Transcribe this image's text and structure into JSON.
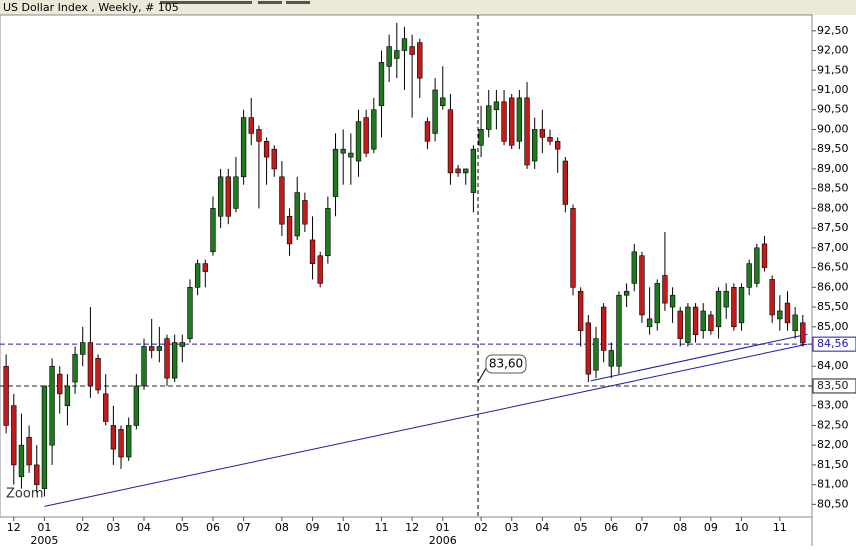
{
  "chart_data": {
    "type": "candlestick",
    "title": "US Dollar Index , Weekly, # 105",
    "zoom_label": "Zoom",
    "up_color": "#1f7a1f",
    "down_color": "#c41a1a",
    "xlim": [
      -0.8,
      105.2
    ],
    "xticks": [
      {
        "value": 1,
        "label": "12"
      },
      {
        "value": 5,
        "label": "01"
      },
      {
        "value": 10,
        "label": "02"
      },
      {
        "value": 14,
        "label": "03"
      },
      {
        "value": 18,
        "label": "04"
      },
      {
        "value": 23,
        "label": "05"
      },
      {
        "value": 27,
        "label": "06"
      },
      {
        "value": 31,
        "label": "07"
      },
      {
        "value": 36,
        "label": "08"
      },
      {
        "value": 40,
        "label": "09"
      },
      {
        "value": 44,
        "label": "10"
      },
      {
        "value": 49,
        "label": "11"
      },
      {
        "value": 53,
        "label": "12"
      },
      {
        "value": 57,
        "label": "01"
      },
      {
        "value": 62,
        "label": "02"
      },
      {
        "value": 66,
        "label": "03"
      },
      {
        "value": 70,
        "label": "04"
      },
      {
        "value": 75,
        "label": "05"
      },
      {
        "value": 79,
        "label": "06"
      },
      {
        "value": 83,
        "label": "07"
      },
      {
        "value": 88,
        "label": "08"
      },
      {
        "value": 92,
        "label": "09"
      },
      {
        "value": 96,
        "label": "10"
      },
      {
        "value": 101,
        "label": "11"
      }
    ],
    "year_labels": [
      {
        "value": 5,
        "label": "2005"
      },
      {
        "value": 57,
        "label": "2006"
      }
    ],
    "ylim": [
      80.18,
      92.9
    ],
    "yticks": [
      {
        "value": 80.5,
        "label": "80,50"
      },
      {
        "value": 81,
        "label": "81,00"
      },
      {
        "value": 81.5,
        "label": "81,50"
      },
      {
        "value": 82,
        "label": "82,00"
      },
      {
        "value": 82.5,
        "label": "82,50"
      },
      {
        "value": 83,
        "label": "83,00"
      },
      {
        "value": 84,
        "label": "84,00"
      },
      {
        "value": 85,
        "label": "85,00"
      },
      {
        "value": 85.5,
        "label": "85,50"
      },
      {
        "value": 86,
        "label": "86,00"
      },
      {
        "value": 86.5,
        "label": "86,50"
      },
      {
        "value": 87,
        "label": "87,00"
      },
      {
        "value": 87.5,
        "label": "87,50"
      },
      {
        "value": 88,
        "label": "88,00"
      },
      {
        "value": 88.5,
        "label": "88,50"
      },
      {
        "value": 89,
        "label": "89,00"
      },
      {
        "value": 89.5,
        "label": "89,50"
      },
      {
        "value": 90,
        "label": "90,00"
      },
      {
        "value": 90.5,
        "label": "90,50"
      },
      {
        "value": 91,
        "label": "91,00"
      },
      {
        "value": 91.5,
        "label": "91,50"
      },
      {
        "value": 92,
        "label": "92,00"
      },
      {
        "value": 92.5,
        "label": "92,50"
      }
    ],
    "hlines": [
      {
        "value": 84.56,
        "label": "84,56",
        "color": "#1c1ca8"
      },
      {
        "value": 83.5,
        "label": "83,50",
        "color": "#222222"
      }
    ],
    "cursor": {
      "x": 61.6,
      "y": 83.6,
      "label": "83,60"
    },
    "trendlines": [
      {
        "x": [
          5,
          104.6
        ],
        "y": [
          80.45,
          84.56
        ],
        "color": "#1c1ca8"
      },
      {
        "x": [
          76.3,
          104.6
        ],
        "y": [
          83.63,
          84.81
        ],
        "color": "#1c1ca8"
      }
    ],
    "candles": [
      [
        84.0,
        84.3,
        82.3,
        82.5
      ],
      [
        83.0,
        83.3,
        81.0,
        81.5
      ],
      [
        81.2,
        82.8,
        80.9,
        82.0
      ],
      [
        82.2,
        82.5,
        81.3,
        81.5
      ],
      [
        81.5,
        82.0,
        80.8,
        81.0
      ],
      [
        80.9,
        83.5,
        80.7,
        83.5
      ],
      [
        82.0,
        84.2,
        81.5,
        84.0
      ],
      [
        83.8,
        84.0,
        82.8,
        83.3
      ],
      [
        83.0,
        83.8,
        82.5,
        83.5
      ],
      [
        83.6,
        84.5,
        83.3,
        84.3
      ],
      [
        84.3,
        85.0,
        84.0,
        84.6
      ],
      [
        84.6,
        85.5,
        83.2,
        83.5
      ],
      [
        84.2,
        84.3,
        83.3,
        83.4
      ],
      [
        83.3,
        83.8,
        82.5,
        82.6
      ],
      [
        82.5,
        83.0,
        81.5,
        81.9
      ],
      [
        82.4,
        82.5,
        81.4,
        81.7
      ],
      [
        81.7,
        82.7,
        81.6,
        82.5
      ],
      [
        82.5,
        83.8,
        82.4,
        83.5
      ],
      [
        83.5,
        84.7,
        83.4,
        84.5
      ],
      [
        84.5,
        85.2,
        84.2,
        84.4
      ],
      [
        84.4,
        85.0,
        84.1,
        84.5
      ],
      [
        84.7,
        84.8,
        83.5,
        83.7
      ],
      [
        83.7,
        84.8,
        83.6,
        84.6
      ],
      [
        84.5,
        84.8,
        84.1,
        84.6
      ],
      [
        84.7,
        86.2,
        84.6,
        86.0
      ],
      [
        86.0,
        86.7,
        85.8,
        86.6
      ],
      [
        86.6,
        86.7,
        86.0,
        86.4
      ],
      [
        86.9,
        88.3,
        86.8,
        88.0
      ],
      [
        87.8,
        89.0,
        87.5,
        88.8
      ],
      [
        88.8,
        89.0,
        87.6,
        87.8
      ],
      [
        88.0,
        89.3,
        87.9,
        88.8
      ],
      [
        88.8,
        90.5,
        88.6,
        90.3
      ],
      [
        90.3,
        90.8,
        89.6,
        89.9
      ],
      [
        90.0,
        90.1,
        88.0,
        89.7
      ],
      [
        89.7,
        89.8,
        88.6,
        89.3
      ],
      [
        89.5,
        89.6,
        88.8,
        89.0
      ],
      [
        88.8,
        89.2,
        87.3,
        87.6
      ],
      [
        87.8,
        88.0,
        86.8,
        87.1
      ],
      [
        87.3,
        88.8,
        87.2,
        88.4
      ],
      [
        88.2,
        88.4,
        87.4,
        87.6
      ],
      [
        87.2,
        87.8,
        86.2,
        86.6
      ],
      [
        86.8,
        86.9,
        86.0,
        86.1
      ],
      [
        86.8,
        88.3,
        86.6,
        88.0
      ],
      [
        88.3,
        89.9,
        87.8,
        89.5
      ],
      [
        89.4,
        90.0,
        88.6,
        89.5
      ],
      [
        89.3,
        89.9,
        88.6,
        89.4
      ],
      [
        89.2,
        90.5,
        88.8,
        90.2
      ],
      [
        90.3,
        90.5,
        89.3,
        89.4
      ],
      [
        89.5,
        90.8,
        89.4,
        90.5
      ],
      [
        90.6,
        92.0,
        89.8,
        91.7
      ],
      [
        91.6,
        92.4,
        91.2,
        92.1
      ],
      [
        91.8,
        92.7,
        91.3,
        92.0
      ],
      [
        92.0,
        92.6,
        91.0,
        92.3
      ],
      [
        92.1,
        92.4,
        90.3,
        91.9
      ],
      [
        92.2,
        92.3,
        90.8,
        91.3
      ],
      [
        90.2,
        90.3,
        89.5,
        89.7
      ],
      [
        89.9,
        91.3,
        89.7,
        91.0
      ],
      [
        90.6,
        91.6,
        90.5,
        90.8
      ],
      [
        90.5,
        90.9,
        88.6,
        88.9
      ],
      [
        89.0,
        89.1,
        88.8,
        88.9
      ],
      [
        88.9,
        89.0,
        88.6,
        89.0
      ],
      [
        88.4,
        89.6,
        87.9,
        89.5
      ],
      [
        89.6,
        90.6,
        89.3,
        90.0
      ],
      [
        90.0,
        91.0,
        89.8,
        90.6
      ],
      [
        90.5,
        91.0,
        90.0,
        90.7
      ],
      [
        90.7,
        91.0,
        89.6,
        89.7
      ],
      [
        90.8,
        90.9,
        89.5,
        89.6
      ],
      [
        89.7,
        91.0,
        89.5,
        90.8
      ],
      [
        90.8,
        91.2,
        89.0,
        89.1
      ],
      [
        89.2,
        90.3,
        89.0,
        90.0
      ],
      [
        90.0,
        90.5,
        89.4,
        89.8
      ],
      [
        89.8,
        90.0,
        89.6,
        89.7
      ],
      [
        89.7,
        89.8,
        88.9,
        89.5
      ],
      [
        89.2,
        89.3,
        87.9,
        88.1
      ],
      [
        88.0,
        88.1,
        85.8,
        86.0
      ],
      [
        85.9,
        86.0,
        84.5,
        84.9
      ],
      [
        85.1,
        85.3,
        83.6,
        83.8
      ],
      [
        83.9,
        85.0,
        83.7,
        84.7
      ],
      [
        85.5,
        85.6,
        84.1,
        84.4
      ],
      [
        84.0,
        84.6,
        83.7,
        84.4
      ],
      [
        84.0,
        85.9,
        83.8,
        85.8
      ],
      [
        85.8,
        86.1,
        85.5,
        85.9
      ],
      [
        86.1,
        87.1,
        85.9,
        86.9
      ],
      [
        86.8,
        86.9,
        85.1,
        85.3
      ],
      [
        85.0,
        86.0,
        84.8,
        85.2
      ],
      [
        85.1,
        86.2,
        84.9,
        86.1
      ],
      [
        86.3,
        87.4,
        85.4,
        85.6
      ],
      [
        85.5,
        86.0,
        85.1,
        85.8
      ],
      [
        85.4,
        85.5,
        84.5,
        84.7
      ],
      [
        84.6,
        85.6,
        84.5,
        85.5
      ],
      [
        85.5,
        85.6,
        84.6,
        84.8
      ],
      [
        84.9,
        85.6,
        84.7,
        85.4
      ],
      [
        85.3,
        85.4,
        84.8,
        84.9
      ],
      [
        85.0,
        86.0,
        84.7,
        85.9
      ],
      [
        85.5,
        86.1,
        85.2,
        85.9
      ],
      [
        86.0,
        86.1,
        84.9,
        85.0
      ],
      [
        85.1,
        86.1,
        84.9,
        86.0
      ],
      [
        86.0,
        86.7,
        85.8,
        86.6
      ],
      [
        86.1,
        87.1,
        86.0,
        87.0
      ],
      [
        87.1,
        87.3,
        86.4,
        86.5
      ],
      [
        86.2,
        86.3,
        85.1,
        85.3
      ],
      [
        85.2,
        85.8,
        84.9,
        85.4
      ],
      [
        85.6,
        85.9,
        84.9,
        85.1
      ],
      [
        84.9,
        85.5,
        84.7,
        85.3
      ],
      [
        85.1,
        85.3,
        84.5,
        84.6
      ]
    ]
  }
}
